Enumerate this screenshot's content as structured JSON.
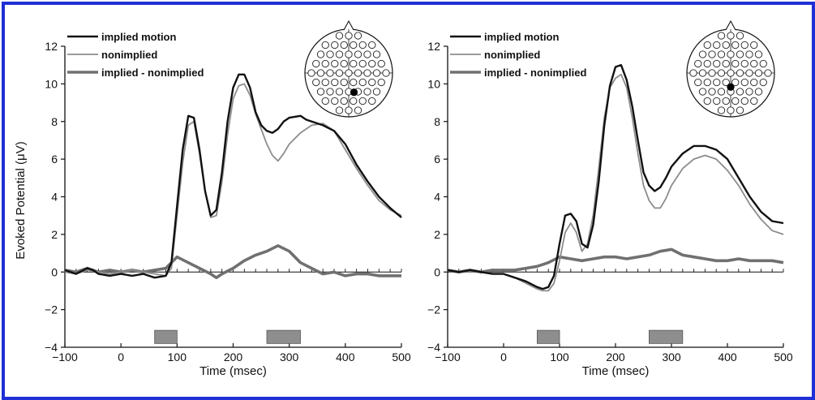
{
  "frame_color": "#1f2fd6",
  "ylabel": "Evoked Potential (μV)",
  "chart_data": [
    {
      "type": "line",
      "xlabel": "Time (msec)",
      "xlim": [
        -100,
        500
      ],
      "ylim": [
        -4,
        12
      ],
      "xticks": [
        -100,
        0,
        100,
        200,
        300,
        400,
        500
      ],
      "yticks": [
        -4,
        -2,
        0,
        2,
        4,
        6,
        8,
        10,
        12
      ],
      "xtick_labels": [
        "−100",
        "0",
        "100",
        "200",
        "300",
        "400",
        "500"
      ],
      "ytick_labels": [
        "−4",
        "−2",
        "0",
        "2",
        "4",
        "6",
        "8",
        "10",
        "12"
      ],
      "series": [
        {
          "name": "implied motion",
          "color": "#111111",
          "width": 2.4,
          "x": [
            -100,
            -80,
            -60,
            -50,
            -40,
            -20,
            0,
            20,
            40,
            60,
            80,
            90,
            100,
            110,
            120,
            130,
            140,
            150,
            160,
            170,
            180,
            190,
            200,
            210,
            220,
            230,
            240,
            250,
            260,
            270,
            280,
            290,
            300,
            320,
            330,
            340,
            360,
            380,
            400,
            420,
            440,
            460,
            480,
            500
          ],
          "y": [
            0.1,
            -0.1,
            0.2,
            0.1,
            -0.1,
            -0.2,
            -0.1,
            -0.2,
            -0.1,
            -0.3,
            -0.2,
            0.5,
            3.5,
            6.5,
            8.3,
            8.2,
            6.5,
            4.3,
            3.0,
            3.3,
            5.3,
            8.0,
            9.8,
            10.5,
            10.5,
            9.8,
            8.5,
            7.8,
            7.5,
            7.4,
            7.6,
            8.0,
            8.2,
            8.3,
            8.1,
            8.0,
            7.8,
            7.5,
            6.8,
            5.7,
            4.8,
            4.0,
            3.4,
            2.9
          ]
        },
        {
          "name": "nonimplied",
          "color": "#8c8c8c",
          "width": 1.8,
          "x": [
            -100,
            -80,
            -60,
            -40,
            -20,
            0,
            20,
            40,
            60,
            80,
            90,
            100,
            110,
            120,
            130,
            140,
            150,
            160,
            170,
            180,
            190,
            200,
            210,
            220,
            230,
            240,
            250,
            260,
            270,
            280,
            290,
            300,
            320,
            340,
            360,
            380,
            400,
            420,
            440,
            460,
            480,
            500
          ],
          "y": [
            0.0,
            -0.1,
            0.1,
            0.0,
            -0.1,
            0.0,
            0.1,
            0.0,
            -0.1,
            -0.2,
            0.2,
            3.0,
            5.8,
            7.8,
            8.0,
            6.3,
            4.3,
            2.9,
            3.0,
            4.8,
            7.3,
            9.2,
            9.9,
            10.0,
            9.4,
            8.4,
            7.6,
            6.8,
            6.2,
            5.9,
            6.3,
            6.8,
            7.4,
            7.8,
            7.9,
            7.5,
            6.5,
            5.5,
            4.6,
            3.8,
            3.3,
            3.0
          ]
        },
        {
          "name": "implied - nonimplied",
          "color": "#707070",
          "width": 3.6,
          "x": [
            -100,
            -80,
            -60,
            -40,
            -20,
            0,
            20,
            40,
            60,
            80,
            100,
            120,
            140,
            160,
            170,
            180,
            200,
            220,
            240,
            260,
            280,
            300,
            320,
            340,
            360,
            380,
            400,
            420,
            440,
            460,
            480,
            500
          ],
          "y": [
            0.1,
            0.0,
            0.2,
            0.0,
            0.1,
            0.0,
            0.1,
            0.0,
            0.1,
            0.2,
            0.8,
            0.5,
            0.2,
            -0.1,
            -0.3,
            -0.1,
            0.2,
            0.6,
            0.9,
            1.1,
            1.4,
            1.1,
            0.5,
            0.2,
            -0.1,
            0.0,
            -0.2,
            -0.1,
            -0.1,
            -0.2,
            -0.2,
            -0.2
          ]
        }
      ],
      "shaded_windows": [
        [
          60,
          100
        ],
        [
          260,
          320
        ]
      ],
      "electrode": {
        "row": 0.72,
        "col": 0.56
      }
    },
    {
      "type": "line",
      "xlabel": "Time (msec)",
      "xlim": [
        -100,
        500
      ],
      "ylim": [
        -4,
        12
      ],
      "xticks": [
        -100,
        0,
        100,
        200,
        300,
        400,
        500
      ],
      "yticks": [
        -4,
        -2,
        0,
        2,
        4,
        6,
        8,
        10,
        12
      ],
      "xtick_labels": [
        "−100",
        "0",
        "100",
        "200",
        "300",
        "400",
        "500"
      ],
      "ytick_labels": [
        "−4",
        "−2",
        "0",
        "2",
        "4",
        "6",
        "8",
        "10",
        "12"
      ],
      "series": [
        {
          "name": "implied motion",
          "color": "#111111",
          "width": 2.4,
          "x": [
            -100,
            -80,
            -60,
            -40,
            -20,
            0,
            20,
            40,
            60,
            70,
            80,
            90,
            100,
            110,
            120,
            130,
            140,
            150,
            160,
            170,
            180,
            190,
            200,
            210,
            220,
            230,
            240,
            250,
            260,
            270,
            280,
            290,
            300,
            320,
            340,
            360,
            380,
            400,
            420,
            440,
            460,
            480,
            500
          ],
          "y": [
            0.1,
            0.0,
            0.1,
            0.0,
            -0.1,
            -0.1,
            -0.3,
            -0.5,
            -0.8,
            -0.9,
            -0.8,
            -0.2,
            1.5,
            3.0,
            3.1,
            2.7,
            1.5,
            1.3,
            2.5,
            4.8,
            7.8,
            9.9,
            10.9,
            11.0,
            10.2,
            8.8,
            7.0,
            5.3,
            4.6,
            4.3,
            4.5,
            5.0,
            5.6,
            6.3,
            6.7,
            6.7,
            6.5,
            6.0,
            5.0,
            4.0,
            3.2,
            2.7,
            2.6
          ]
        },
        {
          "name": "nonimplied",
          "color": "#8c8c8c",
          "width": 1.8,
          "x": [
            -100,
            -80,
            -60,
            -40,
            -20,
            0,
            20,
            40,
            60,
            70,
            80,
            90,
            100,
            110,
            120,
            130,
            140,
            150,
            160,
            170,
            180,
            190,
            200,
            210,
            220,
            230,
            240,
            250,
            260,
            270,
            280,
            290,
            300,
            320,
            340,
            360,
            380,
            400,
            420,
            440,
            460,
            480,
            500
          ],
          "y": [
            0.1,
            0.0,
            0.0,
            0.0,
            -0.1,
            -0.1,
            -0.3,
            -0.6,
            -0.9,
            -1.0,
            -1.0,
            -0.6,
            0.6,
            2.1,
            2.6,
            2.1,
            1.1,
            1.5,
            3.0,
            5.5,
            8.2,
            9.8,
            10.3,
            10.5,
            9.8,
            8.2,
            6.3,
            4.6,
            3.8,
            3.4,
            3.4,
            3.9,
            4.6,
            5.5,
            6.0,
            6.2,
            6.0,
            5.4,
            4.6,
            3.6,
            2.8,
            2.2,
            2.0
          ]
        },
        {
          "name": "implied - nonimplied",
          "color": "#707070",
          "width": 3.6,
          "x": [
            -100,
            -80,
            -60,
            -40,
            -20,
            0,
            20,
            40,
            60,
            80,
            100,
            120,
            140,
            160,
            180,
            200,
            220,
            240,
            260,
            280,
            300,
            320,
            340,
            360,
            380,
            400,
            420,
            440,
            460,
            480,
            500
          ],
          "y": [
            0.1,
            0.0,
            0.1,
            0.0,
            0.1,
            0.1,
            0.1,
            0.2,
            0.3,
            0.5,
            0.8,
            0.7,
            0.6,
            0.7,
            0.8,
            0.8,
            0.7,
            0.8,
            0.9,
            1.1,
            1.2,
            0.9,
            0.8,
            0.7,
            0.6,
            0.6,
            0.7,
            0.6,
            0.6,
            0.6,
            0.5
          ]
        }
      ],
      "shaded_windows": [
        [
          60,
          100
        ],
        [
          260,
          320
        ]
      ],
      "electrode": {
        "row": 0.66,
        "col": 0.5
      }
    }
  ]
}
